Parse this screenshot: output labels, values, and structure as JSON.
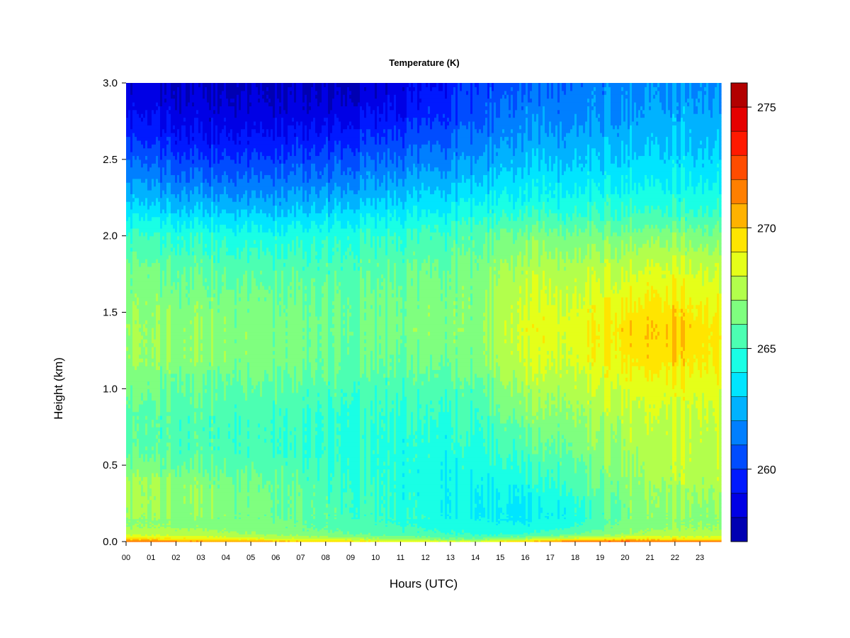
{
  "chart_data": {
    "type": "heatmap",
    "title": "Temperature (K)",
    "xlabel": "Hours (UTC)",
    "ylabel": "Height (km)",
    "x_tick_labels": [
      "00",
      "01",
      "02",
      "03",
      "04",
      "05",
      "06",
      "07",
      "08",
      "09",
      "10",
      "11",
      "12",
      "13",
      "14",
      "15",
      "16",
      "17",
      "18",
      "19",
      "20",
      "21",
      "22",
      "23"
    ],
    "x_ticks": [
      0,
      1,
      2,
      3,
      4,
      5,
      6,
      7,
      8,
      9,
      10,
      11,
      12,
      13,
      14,
      15,
      16,
      17,
      18,
      19,
      20,
      21,
      22,
      23
    ],
    "xlim": [
      0,
      23.85
    ],
    "y_tick_labels": [
      "0.0",
      "0.5",
      "1.0",
      "1.5",
      "2.0",
      "2.5",
      "3.0"
    ],
    "y_ticks": [
      0.0,
      0.5,
      1.0,
      1.5,
      2.0,
      2.5,
      3.0
    ],
    "ylim": [
      0.0,
      3.0
    ],
    "colorbar": {
      "range": [
        257,
        276
      ],
      "tick_values": [
        260,
        265,
        270,
        275
      ],
      "tick_labels": [
        "260",
        "265",
        "270",
        "275"
      ],
      "levels": [
        257,
        258,
        259,
        260,
        261,
        262,
        263,
        264,
        265,
        266,
        267,
        268,
        269,
        270,
        271,
        272,
        273,
        274,
        275,
        276
      ],
      "colors": [
        "#00007f",
        "#0000b2",
        "#0000e5",
        "#0019ff",
        "#004cff",
        "#007fff",
        "#00b2ff",
        "#00e5ff",
        "#19ffe5",
        "#4cffb2",
        "#7fff7f",
        "#b2ff4c",
        "#e5ff19",
        "#ffe500",
        "#ffb200",
        "#ff7f00",
        "#ff4c00",
        "#ff1900",
        "#e50000",
        "#b20000",
        "#7f0000"
      ]
    },
    "grid": false,
    "profile_heights_km": [
      0.0,
      0.02,
      0.05,
      0.1,
      0.15,
      0.2,
      0.3,
      0.4,
      0.5,
      0.6,
      0.8,
      1.0,
      1.2,
      1.4,
      1.6,
      1.8,
      2.0,
      2.1,
      2.2,
      2.4,
      2.6,
      2.8,
      3.0
    ],
    "profiles": [
      {
        "hour": 0,
        "temps_K": [
          272.0,
          269.5,
          267.8,
          267.0,
          266.8,
          266.9,
          267.0,
          267.0,
          266.2,
          265.6,
          265.6,
          266.0,
          266.8,
          266.8,
          266.5,
          266.0,
          265.0,
          264.0,
          263.0,
          261.5,
          260.0,
          258.8,
          258.0
        ]
      },
      {
        "hour": 3,
        "temps_K": [
          271.5,
          269.0,
          267.5,
          266.8,
          266.7,
          266.8,
          266.8,
          266.6,
          266.0,
          265.6,
          265.5,
          266.0,
          266.8,
          266.8,
          266.5,
          265.8,
          264.8,
          263.8,
          262.8,
          261.0,
          259.5,
          258.5,
          258.0
        ]
      },
      {
        "hour": 6,
        "temps_K": [
          270.8,
          268.2,
          266.8,
          266.3,
          266.2,
          266.2,
          266.2,
          266.0,
          265.6,
          265.2,
          265.2,
          265.8,
          266.5,
          266.5,
          266.2,
          265.5,
          264.5,
          263.5,
          262.5,
          261.0,
          259.5,
          258.4,
          257.8
        ]
      },
      {
        "hour": 9,
        "temps_K": [
          269.8,
          267.5,
          266.0,
          265.6,
          265.4,
          265.3,
          265.2,
          265.1,
          265.0,
          264.8,
          264.9,
          265.4,
          266.0,
          266.2,
          266.0,
          265.5,
          264.8,
          264.0,
          263.0,
          261.4,
          260.0,
          258.6,
          257.8
        ]
      },
      {
        "hour": 12,
        "temps_K": [
          268.8,
          266.5,
          265.2,
          264.8,
          264.5,
          264.3,
          264.3,
          264.3,
          264.3,
          264.4,
          264.7,
          265.3,
          266.0,
          266.4,
          266.3,
          265.8,
          265.0,
          264.2,
          263.4,
          262.0,
          260.6,
          259.4,
          258.6
        ]
      },
      {
        "hour": 14,
        "temps_K": [
          268.5,
          266.0,
          264.8,
          264.4,
          264.1,
          263.9,
          264.0,
          264.2,
          264.4,
          264.6,
          265.0,
          265.6,
          266.4,
          266.6,
          266.5,
          266.2,
          265.5,
          264.8,
          264.0,
          262.6,
          261.4,
          260.5,
          260.0
        ]
      },
      {
        "hour": 16,
        "temps_K": [
          270.5,
          267.2,
          265.0,
          264.2,
          263.8,
          263.7,
          264.1,
          264.6,
          265.0,
          265.5,
          266.4,
          267.4,
          268.2,
          268.5,
          268.2,
          267.5,
          266.5,
          265.5,
          264.5,
          263.4,
          262.4,
          261.6,
          261.0
        ]
      },
      {
        "hour": 18,
        "temps_K": [
          272.5,
          268.5,
          266.0,
          265.0,
          264.6,
          264.5,
          265.0,
          265.5,
          265.8,
          266.2,
          266.8,
          267.5,
          268.2,
          268.4,
          268.0,
          267.3,
          266.3,
          265.3,
          264.5,
          263.4,
          262.4,
          261.6,
          261.2
        ]
      },
      {
        "hour": 20,
        "temps_K": [
          273.0,
          269.2,
          267.0,
          266.5,
          266.3,
          266.3,
          266.5,
          266.8,
          267.0,
          267.2,
          267.6,
          268.3,
          269.3,
          269.6,
          268.8,
          267.8,
          266.5,
          265.5,
          264.8,
          263.6,
          262.8,
          262.0,
          261.6
        ]
      },
      {
        "hour": 22,
        "temps_K": [
          272.5,
          269.0,
          267.5,
          267.0,
          266.9,
          267.0,
          267.2,
          267.5,
          267.6,
          267.8,
          268.0,
          268.6,
          269.6,
          270.0,
          269.2,
          268.2,
          266.8,
          265.6,
          264.8,
          263.8,
          263.0,
          262.4,
          262.0
        ]
      },
      {
        "hour": 23.85,
        "temps_K": [
          272.0,
          268.8,
          267.5,
          267.0,
          266.9,
          267.0,
          267.2,
          267.5,
          267.8,
          267.8,
          268.0,
          268.5,
          269.2,
          269.3,
          268.6,
          267.8,
          266.6,
          265.6,
          264.8,
          263.8,
          263.0,
          262.4,
          262.0
        ]
      }
    ]
  }
}
